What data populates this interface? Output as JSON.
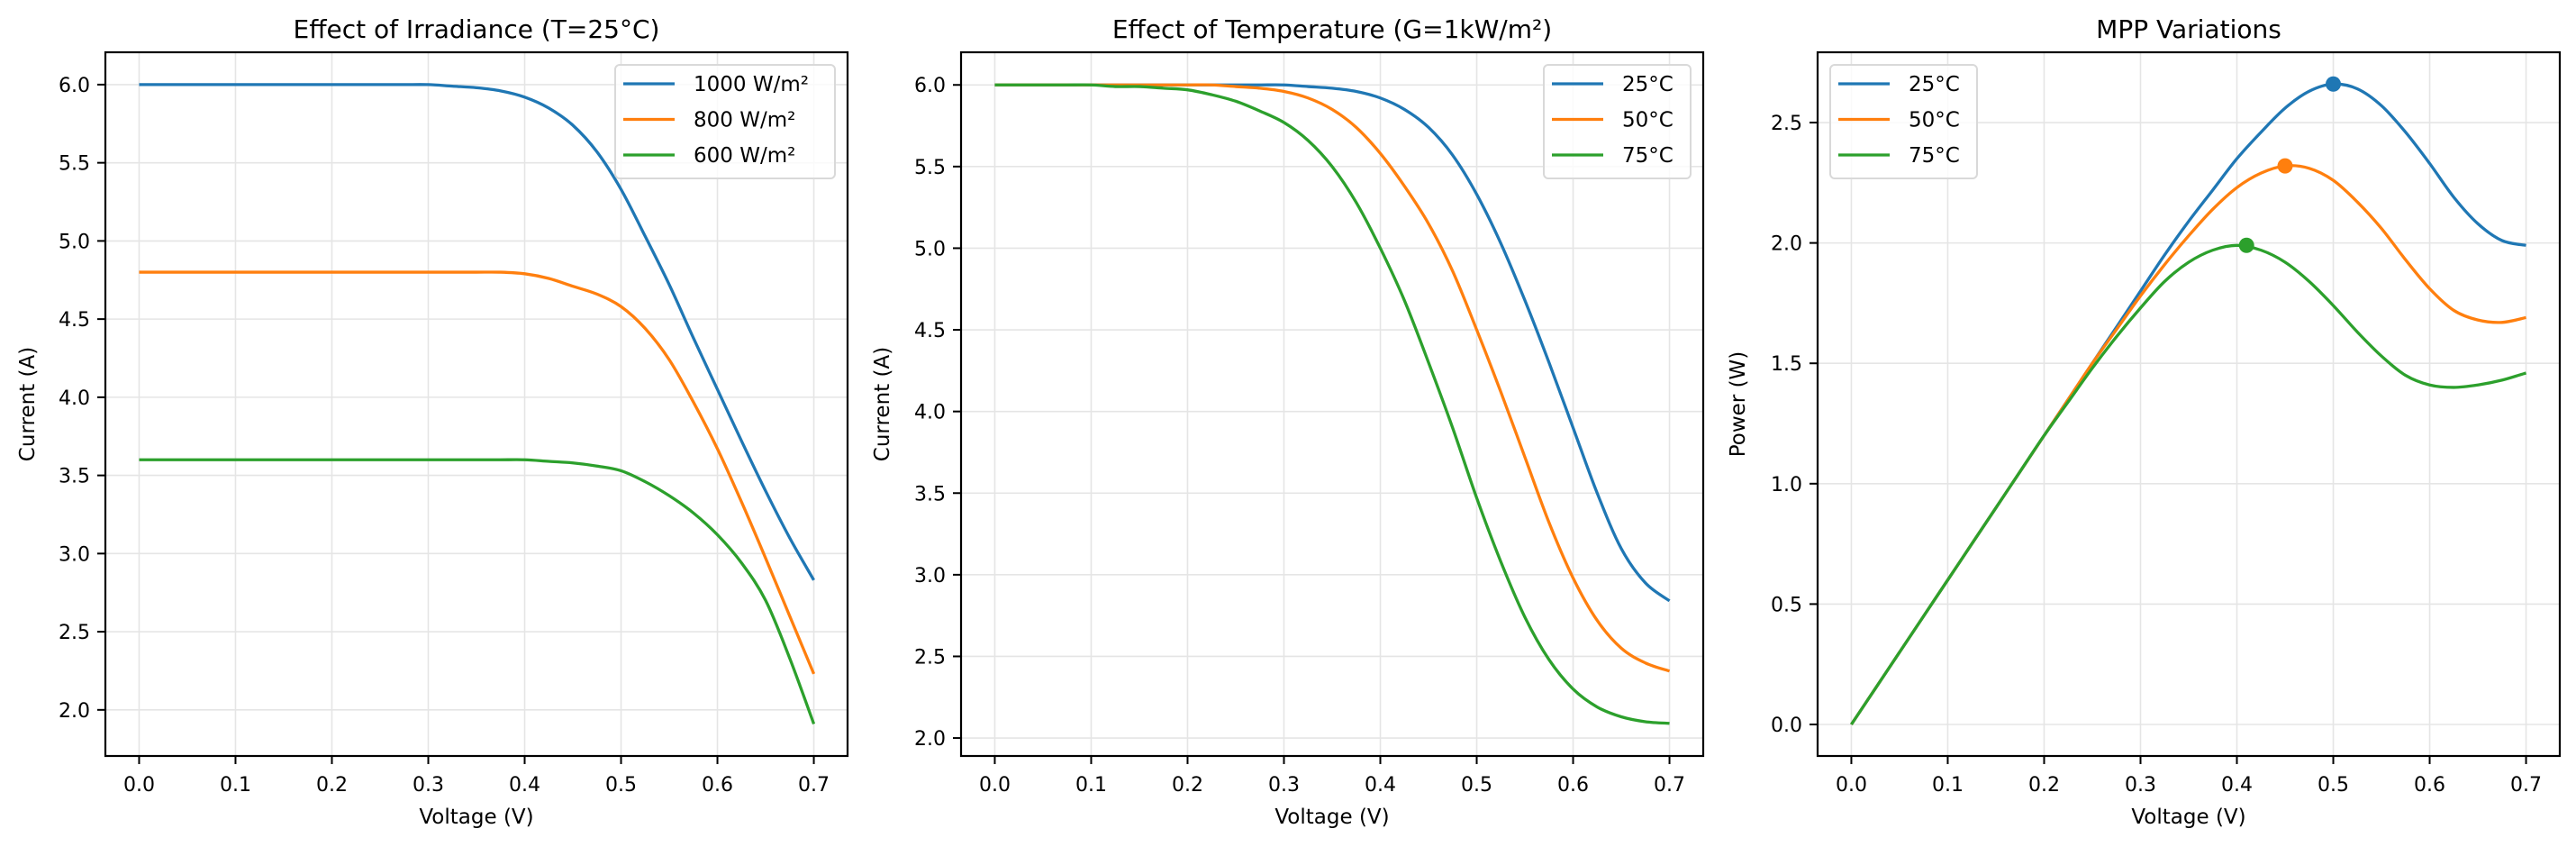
{
  "colors": {
    "blue": "#1f77b4",
    "orange": "#ff7f0e",
    "green": "#2ca02c",
    "grid": "#e5e5e5",
    "legend_border": "#d9d9d9"
  },
  "chart_data": [
    {
      "type": "line",
      "title": "Effect of Irradiance (T=25°C)",
      "xlabel": "Voltage (V)",
      "ylabel": "Current (A)",
      "xlim": [
        -0.035,
        0.735
      ],
      "ylim": [
        1.705,
        6.207
      ],
      "xticks": [
        0.0,
        0.1,
        0.2,
        0.3,
        0.4,
        0.5,
        0.6,
        0.7
      ],
      "xtick_labels": [
        "0.0",
        "0.1",
        "0.2",
        "0.3",
        "0.4",
        "0.5",
        "0.6",
        "0.7"
      ],
      "yticks": [
        2.0,
        2.5,
        3.0,
        3.5,
        4.0,
        4.5,
        5.0,
        5.5,
        6.0
      ],
      "ytick_labels": [
        "2.0",
        "2.5",
        "3.0",
        "3.5",
        "4.0",
        "4.5",
        "5.0",
        "5.5",
        "6.0"
      ],
      "grid": true,
      "legend_position": "top-right",
      "x": [
        0,
        0.025,
        0.05,
        0.075,
        0.1,
        0.125,
        0.15,
        0.175,
        0.2,
        0.225,
        0.25,
        0.275,
        0.3,
        0.325,
        0.35,
        0.375,
        0.4,
        0.425,
        0.45,
        0.475,
        0.5,
        0.525,
        0.55,
        0.575,
        0.6,
        0.625,
        0.65,
        0.675,
        0.7
      ],
      "series": [
        {
          "name": "1000 W/m²",
          "color": "blue",
          "values": [
            6.0,
            6.0,
            6.0,
            6.0,
            6.0,
            6.0,
            6.0,
            6.0,
            6.0,
            6.0,
            6.0,
            6.0,
            6.0,
            5.99,
            5.98,
            5.96,
            5.92,
            5.85,
            5.74,
            5.57,
            5.33,
            5.03,
            4.72,
            4.38,
            4.05,
            3.72,
            3.4,
            3.1,
            2.83
          ]
        },
        {
          "name": "800 W/m²",
          "color": "orange",
          "values": [
            4.8,
            4.8,
            4.8,
            4.8,
            4.8,
            4.8,
            4.8,
            4.8,
            4.8,
            4.8,
            4.8,
            4.8,
            4.8,
            4.8,
            4.8,
            4.8,
            4.79,
            4.76,
            4.71,
            4.66,
            4.58,
            4.44,
            4.24,
            3.97,
            3.67,
            3.33,
            2.97,
            2.6,
            2.23
          ]
        },
        {
          "name": "600 W/m²",
          "color": "green",
          "values": [
            3.6,
            3.6,
            3.6,
            3.6,
            3.6,
            3.6,
            3.6,
            3.6,
            3.6,
            3.6,
            3.6,
            3.6,
            3.6,
            3.6,
            3.6,
            3.6,
            3.6,
            3.59,
            3.58,
            3.56,
            3.53,
            3.46,
            3.37,
            3.26,
            3.12,
            2.94,
            2.7,
            2.33,
            1.91
          ]
        }
      ]
    },
    {
      "type": "line",
      "title": "Effect of Temperature (G=1kW/m²)",
      "xlabel": "Voltage (V)",
      "ylabel": "Current (A)",
      "xlim": [
        -0.035,
        0.735
      ],
      "ylim": [
        1.89,
        6.2
      ],
      "xticks": [
        0.0,
        0.1,
        0.2,
        0.3,
        0.4,
        0.5,
        0.6,
        0.7
      ],
      "xtick_labels": [
        "0.0",
        "0.1",
        "0.2",
        "0.3",
        "0.4",
        "0.5",
        "0.6",
        "0.7"
      ],
      "yticks": [
        2.0,
        2.5,
        3.0,
        3.5,
        4.0,
        4.5,
        5.0,
        5.5,
        6.0
      ],
      "ytick_labels": [
        "2.0",
        "2.5",
        "3.0",
        "3.5",
        "4.0",
        "4.5",
        "5.0",
        "5.5",
        "6.0"
      ],
      "grid": true,
      "legend_position": "top-right",
      "x": [
        0,
        0.025,
        0.05,
        0.075,
        0.1,
        0.125,
        0.15,
        0.175,
        0.2,
        0.225,
        0.25,
        0.275,
        0.3,
        0.325,
        0.35,
        0.375,
        0.4,
        0.425,
        0.45,
        0.475,
        0.5,
        0.525,
        0.55,
        0.575,
        0.6,
        0.625,
        0.65,
        0.675,
        0.7
      ],
      "series": [
        {
          "name": "25°C",
          "color": "blue",
          "values": [
            6.0,
            6.0,
            6.0,
            6.0,
            6.0,
            6.0,
            6.0,
            6.0,
            6.0,
            6.0,
            6.0,
            6.0,
            6.0,
            5.99,
            5.98,
            5.96,
            5.92,
            5.85,
            5.74,
            5.57,
            5.33,
            5.03,
            4.68,
            4.3,
            3.9,
            3.5,
            3.16,
            2.95,
            2.84
          ]
        },
        {
          "name": "50°C",
          "color": "orange",
          "values": [
            6.0,
            6.0,
            6.0,
            6.0,
            6.0,
            6.0,
            6.0,
            6.0,
            6.0,
            6.0,
            5.99,
            5.98,
            5.96,
            5.92,
            5.85,
            5.74,
            5.58,
            5.38,
            5.15,
            4.86,
            4.5,
            4.12,
            3.72,
            3.32,
            2.98,
            2.72,
            2.55,
            2.46,
            2.41
          ]
        },
        {
          "name": "75°C",
          "color": "green",
          "values": [
            6.0,
            6.0,
            6.0,
            6.0,
            6.0,
            5.99,
            5.99,
            5.98,
            5.97,
            5.94,
            5.9,
            5.84,
            5.77,
            5.66,
            5.5,
            5.28,
            5.0,
            4.68,
            4.3,
            3.9,
            3.47,
            3.08,
            2.74,
            2.48,
            2.3,
            2.19,
            2.13,
            2.1,
            2.09
          ]
        }
      ]
    },
    {
      "type": "line",
      "title": "MPP Variations",
      "xlabel": "Voltage (V)",
      "ylabel": "Power (W)",
      "xlim": [
        -0.035,
        0.735
      ],
      "ylim": [
        -0.131,
        2.792
      ],
      "xticks": [
        0.0,
        0.1,
        0.2,
        0.3,
        0.4,
        0.5,
        0.6,
        0.7
      ],
      "xtick_labels": [
        "0.0",
        "0.1",
        "0.2",
        "0.3",
        "0.4",
        "0.5",
        "0.6",
        "0.7"
      ],
      "yticks": [
        0.0,
        0.5,
        1.0,
        1.5,
        2.0,
        2.5
      ],
      "ytick_labels": [
        "0.0",
        "0.5",
        "1.0",
        "1.5",
        "2.0",
        "2.5"
      ],
      "grid": true,
      "legend_position": "top-left",
      "x": [
        0,
        0.025,
        0.05,
        0.075,
        0.1,
        0.125,
        0.15,
        0.175,
        0.2,
        0.225,
        0.25,
        0.275,
        0.3,
        0.325,
        0.35,
        0.375,
        0.4,
        0.425,
        0.45,
        0.475,
        0.5,
        0.525,
        0.55,
        0.575,
        0.6,
        0.625,
        0.65,
        0.675,
        0.7
      ],
      "series": [
        {
          "name": "25°C",
          "color": "blue",
          "values": [
            0.0,
            0.15,
            0.3,
            0.45,
            0.6,
            0.75,
            0.9,
            1.05,
            1.2,
            1.35,
            1.5,
            1.65,
            1.8,
            1.95,
            2.09,
            2.22,
            2.35,
            2.46,
            2.56,
            2.63,
            2.66,
            2.64,
            2.57,
            2.46,
            2.33,
            2.19,
            2.08,
            2.01,
            1.99
          ],
          "mpp": {
            "v": 0.5,
            "p": 2.66
          }
        },
        {
          "name": "50°C",
          "color": "orange",
          "values": [
            0.0,
            0.15,
            0.3,
            0.45,
            0.6,
            0.75,
            0.9,
            1.05,
            1.2,
            1.35,
            1.5,
            1.64,
            1.78,
            1.91,
            2.03,
            2.14,
            2.23,
            2.29,
            2.32,
            2.31,
            2.26,
            2.17,
            2.06,
            1.93,
            1.81,
            1.72,
            1.68,
            1.67,
            1.69
          ],
          "mpp": {
            "v": 0.45,
            "p": 2.32
          }
        },
        {
          "name": "75°C",
          "color": "green",
          "values": [
            0.0,
            0.15,
            0.3,
            0.45,
            0.6,
            0.75,
            0.9,
            1.05,
            1.2,
            1.34,
            1.48,
            1.61,
            1.73,
            1.84,
            1.92,
            1.97,
            1.99,
            1.97,
            1.92,
            1.84,
            1.74,
            1.63,
            1.53,
            1.45,
            1.41,
            1.4,
            1.41,
            1.43,
            1.46
          ],
          "mpp": {
            "v": 0.41,
            "p": 1.99
          }
        }
      ]
    }
  ]
}
